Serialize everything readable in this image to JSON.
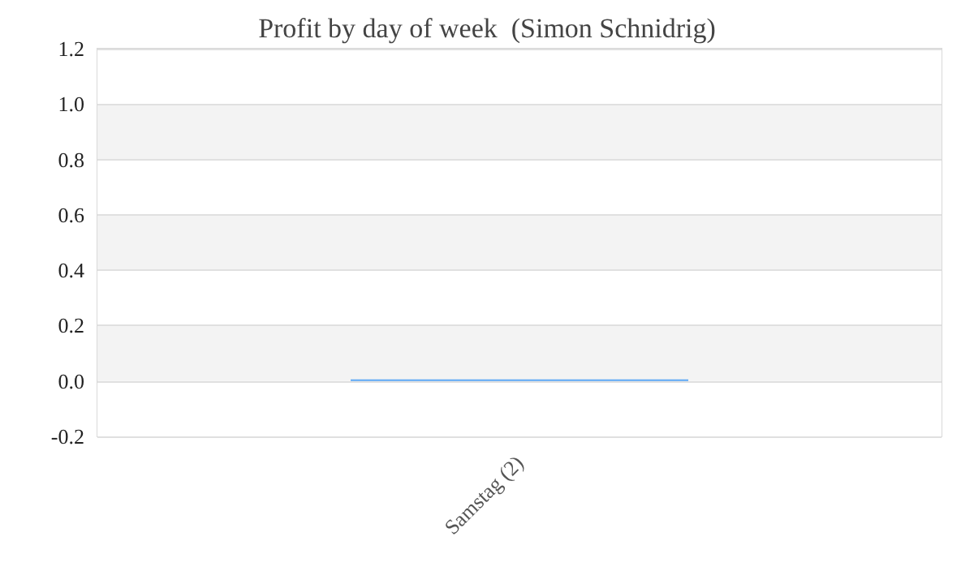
{
  "chart_data": {
    "type": "bar",
    "title": "Profit by day of week  (Simon Schnidrig)",
    "categories": [
      "Samstag (2)"
    ],
    "values": [
      0
    ],
    "color": "#5ba7f5",
    "ylim": [
      -0.2,
      1.2
    ],
    "yticks": [
      {
        "value": -0.2,
        "label": "-0.2"
      },
      {
        "value": 0,
        "label": "0.0"
      },
      {
        "value": 0.2,
        "label": "0.2"
      },
      {
        "value": 0.4,
        "label": "0.4"
      },
      {
        "value": 0.6,
        "label": "0.6"
      },
      {
        "value": 0.8,
        "label": "0.8"
      },
      {
        "value": 1,
        "label": "1.0"
      },
      {
        "value": 1.2,
        "label": "1.2"
      }
    ],
    "grid": "y"
  }
}
